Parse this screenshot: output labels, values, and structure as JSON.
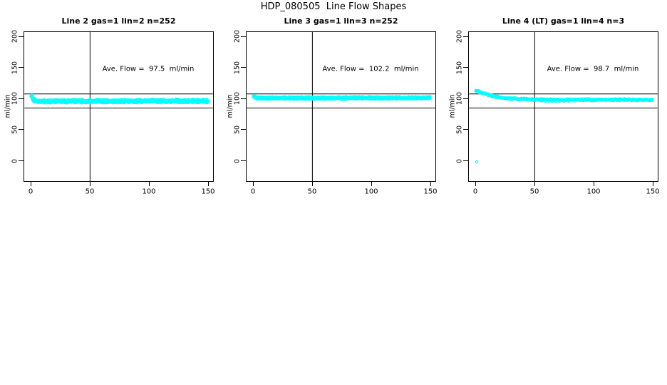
{
  "figure": {
    "title": "HDP_080505  Line Flow Shapes",
    "background": "#FFFFFF",
    "axis_color": "#000000",
    "point_color": "#00FFFF"
  },
  "chart_data": [
    {
      "type": "scatter",
      "title": "Line 2 gas=1 lin=2 n=252",
      "n_curves": 252,
      "annotation": "Ave. Flow =  97.5  ml/min",
      "ave_flow_ml_min": 97.5,
      "marker": "open-circle",
      "marker_color": "#00FFFF",
      "xlim": [
        0,
        150
      ],
      "x_ticks": [
        0,
        50,
        100,
        150
      ],
      "y_ticks": [
        0,
        50,
        100,
        150,
        200
      ],
      "ylabel": "ml/min",
      "ref_vline_x": 50,
      "ref_hlines_y": [
        107.7,
        84.8
      ],
      "grid": false,
      "mean_curve": {
        "x": [
          0,
          1,
          2,
          3,
          4,
          5,
          7,
          10,
          15,
          20,
          30,
          40,
          50,
          75,
          100,
          125,
          150
        ],
        "y": [
          104.3,
          100.5,
          98.2,
          96.8,
          96.1,
          95.7,
          95.5,
          95.4,
          95.5,
          95.6,
          95.8,
          95.9,
          96.0,
          96.1,
          96.2,
          96.2,
          96.2
        ]
      },
      "band_halfwidth": 3.0,
      "extra_points": []
    },
    {
      "type": "scatter",
      "title": "Line 3 gas=1 lin=3 n=252",
      "n_curves": 252,
      "annotation": "Ave. Flow =  102.2  ml/min",
      "ave_flow_ml_min": 102.2,
      "marker": "open-circle",
      "marker_color": "#00FFFF",
      "xlim": [
        0,
        150
      ],
      "x_ticks": [
        0,
        50,
        100,
        150
      ],
      "y_ticks": [
        0,
        50,
        100,
        150,
        200
      ],
      "ylabel": "ml/min",
      "ref_vline_x": 50,
      "ref_hlines_y": [
        107.7,
        84.8
      ],
      "grid": false,
      "mean_curve": {
        "x": [
          0,
          1,
          2,
          3,
          4,
          5,
          7,
          10,
          15,
          20,
          30,
          40,
          50,
          75,
          100,
          125,
          150
        ],
        "y": [
          103.2,
          102.1,
          101.5,
          101.2,
          101.1,
          101.0,
          101.0,
          101.0,
          101.0,
          101.0,
          101.0,
          101.1,
          101.1,
          101.1,
          101.2,
          101.2,
          101.2
        ]
      },
      "band_halfwidth": 2.2,
      "extra_points": []
    },
    {
      "type": "scatter",
      "title": "Line 4 (LT) gas=1 lin=4 n=3",
      "n_curves": 3,
      "annotation": "Ave. Flow =  98.7  ml/min",
      "ave_flow_ml_min": 98.7,
      "marker": "open-circle",
      "marker_color": "#00FFFF",
      "xlim": [
        0,
        150
      ],
      "x_ticks": [
        0,
        50,
        100,
        150
      ],
      "y_ticks": [
        0,
        50,
        100,
        150,
        200
      ],
      "ylabel": "ml/min",
      "ref_vline_x": 50,
      "ref_hlines_y": [
        107.7,
        84.8
      ],
      "grid": false,
      "mean_curve": {
        "x": [
          0,
          1,
          2,
          3,
          4,
          5,
          7,
          10,
          15,
          20,
          30,
          40,
          50,
          75,
          100,
          125,
          150
        ],
        "y": [
          112.8,
          112.2,
          111.5,
          110.8,
          110.1,
          109.4,
          108.2,
          106.4,
          103.9,
          102.1,
          100.0,
          99.1,
          98.7,
          98.3,
          98.2,
          98.3,
          98.2
        ]
      },
      "band_halfwidth": 1.6,
      "extra_points": [
        [
          0.5,
          -2.5
        ],
        [
          56,
          96.2
        ],
        [
          59,
          95.9
        ],
        [
          62,
          95.7
        ],
        [
          65,
          95.8
        ],
        [
          68,
          95.6
        ],
        [
          71,
          95.9
        ],
        [
          75,
          96.0
        ],
        [
          79,
          96.2
        ],
        [
          84,
          96.4
        ]
      ]
    }
  ]
}
